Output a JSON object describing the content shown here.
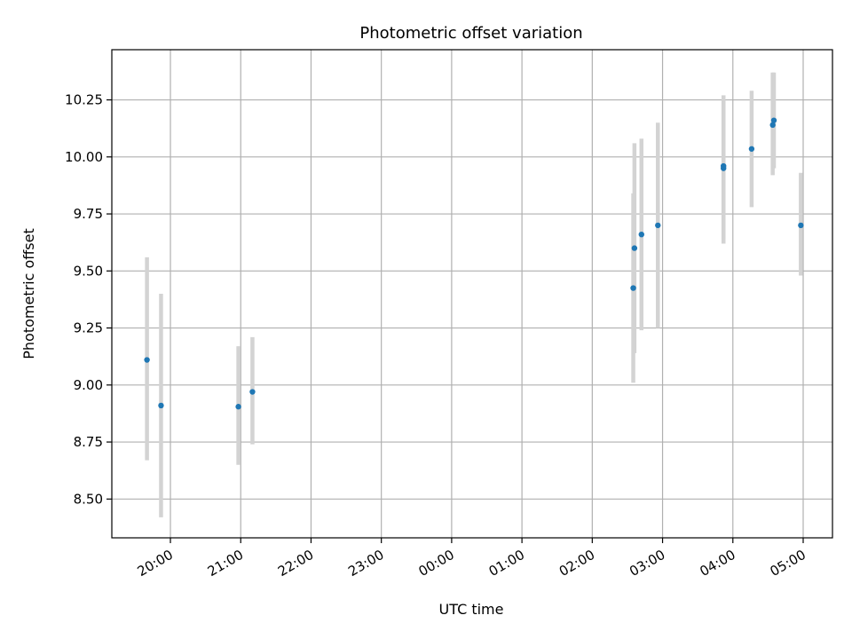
{
  "chart_data": {
    "type": "scatter",
    "title": "Photometric offset variation",
    "xlabel": "UTC time",
    "ylabel": "Photometric offset",
    "xlim": [
      "2023-01-01T19:10",
      "2023-01-02T05:25"
    ],
    "ylim": [
      8.33,
      10.47
    ],
    "grid": true,
    "x_ticks": [
      {
        "t": "2023-01-01T20:00",
        "label": "20:00"
      },
      {
        "t": "2023-01-01T21:00",
        "label": "21:00"
      },
      {
        "t": "2023-01-01T22:00",
        "label": "22:00"
      },
      {
        "t": "2023-01-01T23:00",
        "label": "23:00"
      },
      {
        "t": "2023-01-02T00:00",
        "label": "00:00"
      },
      {
        "t": "2023-01-02T01:00",
        "label": "01:00"
      },
      {
        "t": "2023-01-02T02:00",
        "label": "02:00"
      },
      {
        "t": "2023-01-02T03:00",
        "label": "03:00"
      },
      {
        "t": "2023-01-02T04:00",
        "label": "04:00"
      },
      {
        "t": "2023-01-02T05:00",
        "label": "05:00"
      }
    ],
    "y_ticks": [
      {
        "v": 8.5,
        "label": "8.50"
      },
      {
        "v": 8.75,
        "label": "8.75"
      },
      {
        "v": 9.0,
        "label": "9.00"
      },
      {
        "v": 9.25,
        "label": "9.25"
      },
      {
        "v": 9.5,
        "label": "9.50"
      },
      {
        "v": 9.75,
        "label": "9.75"
      },
      {
        "v": 10.0,
        "label": "10.00"
      },
      {
        "v": 10.25,
        "label": "10.25"
      }
    ],
    "points": [
      {
        "t": "2023-01-01T19:40",
        "y": 9.11,
        "low": 8.67,
        "high": 9.56
      },
      {
        "t": "2023-01-01T19:52",
        "y": 8.91,
        "low": 8.42,
        "high": 9.4
      },
      {
        "t": "2023-01-01T20:58",
        "y": 8.905,
        "low": 8.65,
        "high": 9.17
      },
      {
        "t": "2023-01-01T21:10",
        "y": 8.97,
        "low": 8.74,
        "high": 9.21
      },
      {
        "t": "2023-01-02T02:35",
        "y": 9.425,
        "low": 9.01,
        "high": 9.84
      },
      {
        "t": "2023-01-02T02:36",
        "y": 9.6,
        "low": 9.14,
        "high": 10.06
      },
      {
        "t": "2023-01-02T02:42",
        "y": 9.66,
        "low": 9.24,
        "high": 10.08
      },
      {
        "t": "2023-01-02T02:56",
        "y": 9.7,
        "low": 9.25,
        "high": 10.15
      },
      {
        "t": "2023-01-02T03:52",
        "y": 9.95,
        "low": 9.62,
        "high": 10.27
      },
      {
        "t": "2023-01-02T03:52",
        "y": 9.96,
        "low": 9.64,
        "high": 10.25
      },
      {
        "t": "2023-01-02T04:16",
        "y": 10.035,
        "low": 9.78,
        "high": 10.29
      },
      {
        "t": "2023-01-02T04:34",
        "y": 10.14,
        "low": 9.92,
        "high": 10.37
      },
      {
        "t": "2023-01-02T04:35",
        "y": 10.16,
        "low": 9.95,
        "high": 10.37
      },
      {
        "t": "2023-01-02T04:58",
        "y": 9.7,
        "low": 9.48,
        "high": 9.93
      }
    ],
    "colors": {
      "point": "#1f77b4",
      "errorbar": "#d3d3d3",
      "grid": "#b0b0b0",
      "axis": "#000000"
    }
  }
}
